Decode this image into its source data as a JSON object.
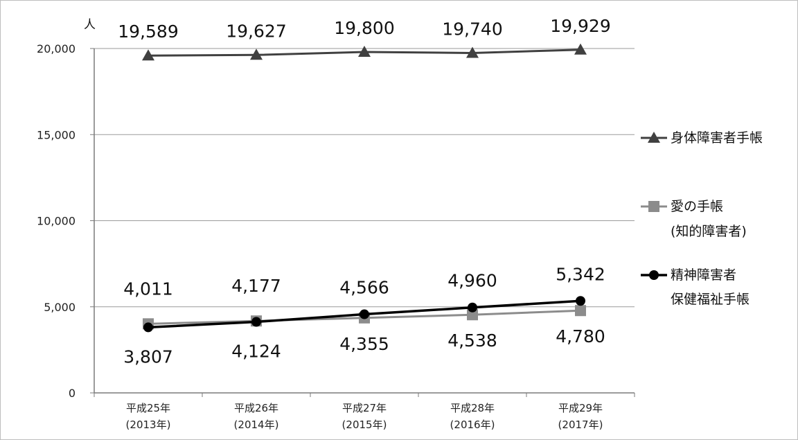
{
  "chart_data": {
    "type": "line",
    "unit_label": "人",
    "x_ticks": [
      [
        "平成25年",
        "(2013年)"
      ],
      [
        "平成26年",
        "(2014年)"
      ],
      [
        "平成27年",
        "(2015年)"
      ],
      [
        "平成28年",
        "(2016年)"
      ],
      [
        "平成29年",
        "(2017年)"
      ]
    ],
    "y_ticks": [
      "0",
      "5,000",
      "10,000",
      "15,000",
      "20,000"
    ],
    "ylim": [
      0,
      20000
    ],
    "grid": true,
    "legend_position": "right",
    "series": [
      {
        "name_lines": [
          "身体障害者手帳"
        ],
        "marker": "triangle",
        "color": "#404040",
        "values": [
          19589,
          19627,
          19800,
          19740,
          19929
        ],
        "labels": [
          "19,589",
          "19,627",
          "19,800",
          "19,740",
          "19,929"
        ]
      },
      {
        "name_lines": [
          "愛の手帳",
          "(知的障害者)"
        ],
        "marker": "square",
        "color": "#8c8c8c",
        "values": [
          4011,
          4177,
          4355,
          4538,
          4780
        ],
        "labels": [
          "4,011",
          "4,177",
          "4,355",
          "4,538",
          "4,780"
        ]
      },
      {
        "name_lines": [
          "精神障害者",
          "保健福祉手帳"
        ],
        "marker": "circle",
        "color": "#000000",
        "values": [
          3807,
          4124,
          4566,
          4960,
          5342
        ],
        "labels": [
          "3,807",
          "4,124",
          "4,566",
          "4,960",
          "5,342"
        ]
      }
    ]
  }
}
